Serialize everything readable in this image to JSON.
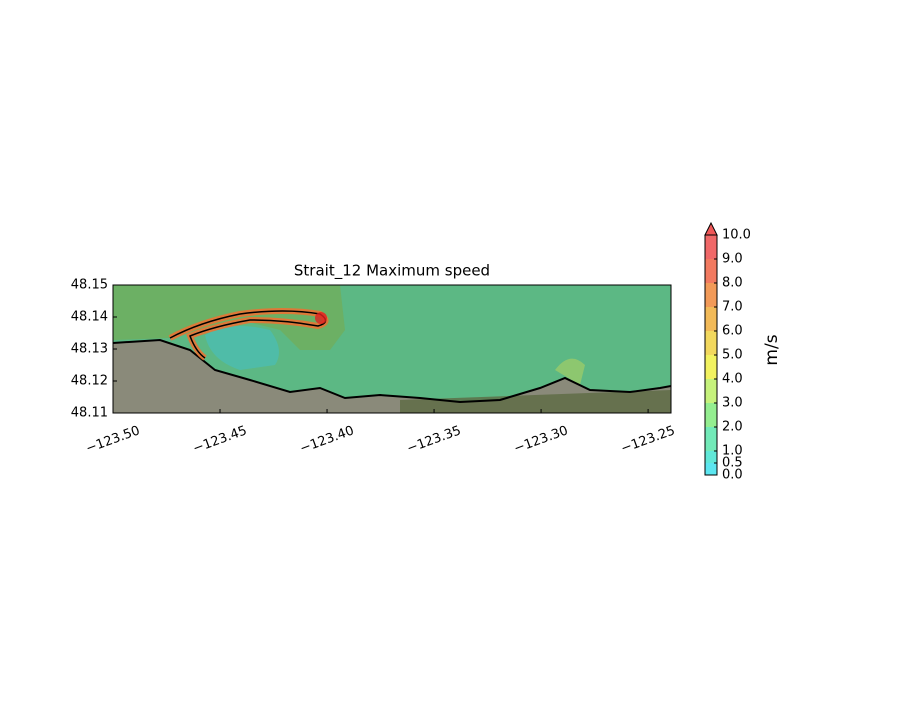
{
  "chart_data": {
    "type": "contour",
    "title": "Strait_12 Maximum speed",
    "xlim": [
      -123.5,
      -123.2393
    ],
    "ylim": [
      48.11,
      48.15
    ],
    "xticks": [
      {
        "value": -123.5,
        "label": "−123.50"
      },
      {
        "value": -123.45,
        "label": "−123.45"
      },
      {
        "value": -123.4,
        "label": "−123.40"
      },
      {
        "value": -123.35,
        "label": "−123.35"
      },
      {
        "value": -123.3,
        "label": "−123.30"
      },
      {
        "value": -123.25,
        "label": "−123.25"
      }
    ],
    "yticks": [
      48.11,
      48.12,
      48.13,
      48.14,
      48.15
    ],
    "colorbar": {
      "label": "m/s",
      "levels": [
        0,
        0.5,
        1,
        2,
        3,
        4,
        5,
        6,
        7,
        8,
        9,
        10
      ],
      "colors": [
        "#5ce6f0",
        "#60e8d8",
        "#72eab8",
        "#94ee90",
        "#c6f27c",
        "#f2f260",
        "#f2d85e",
        "#f2ba58",
        "#f29a58",
        "#f27a60",
        "#f06868"
      ],
      "extend_color": "#f05858",
      "ticks": [
        {
          "value": 0,
          "label": "0.0"
        },
        0.5,
        {
          "value": 1,
          "label": "1.0"
        },
        {
          "value": 2,
          "label": "2.0"
        },
        {
          "value": 3,
          "label": "3.0"
        },
        {
          "value": 4,
          "label": "4.0"
        },
        {
          "value": 5,
          "label": "5.0"
        },
        {
          "value": 6,
          "label": "6.0"
        },
        {
          "value": 7,
          "label": "7.0"
        },
        {
          "value": 8,
          "label": "8.0"
        },
        {
          "value": 9,
          "label": "9.0"
        },
        {
          "value": 10,
          "label": "10.0"
        }
      ]
    }
  }
}
